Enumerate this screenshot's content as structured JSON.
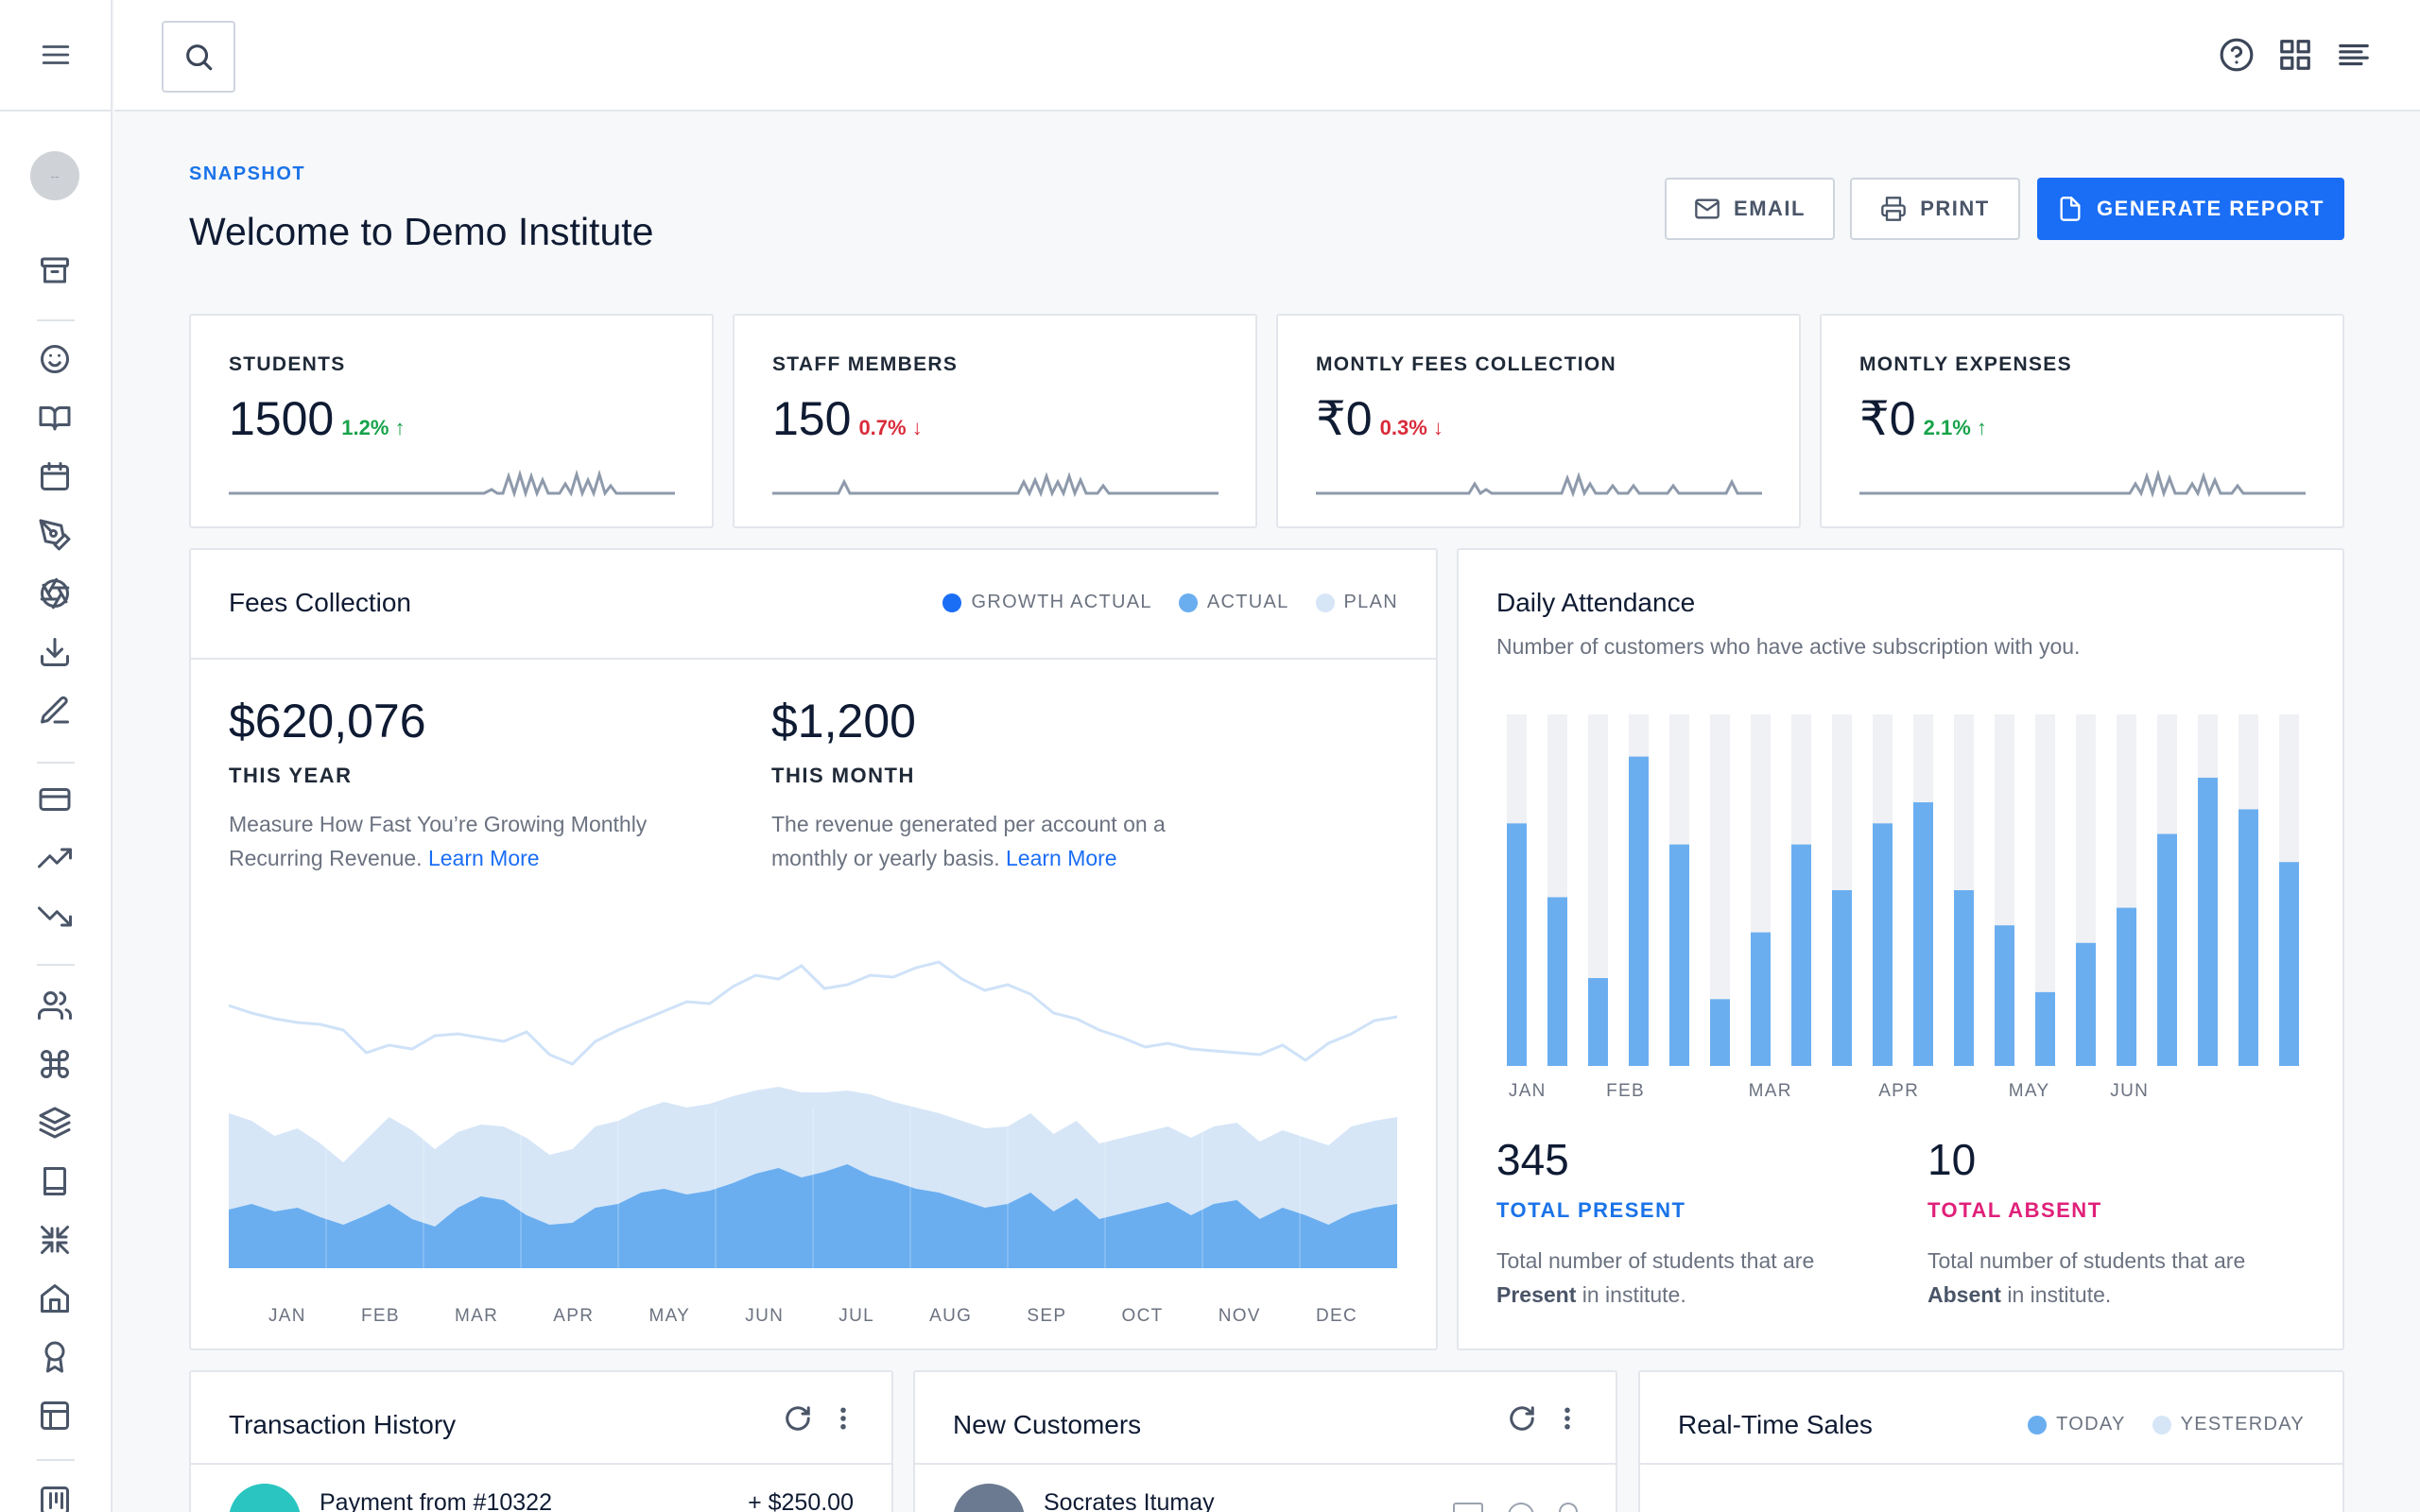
{
  "header": {
    "section": "SNAPSHOT",
    "title": "Welcome to Demo Institute"
  },
  "sidebar": {
    "avatar_text": "--"
  },
  "actions": {
    "email": "EMAIL",
    "print": "PRINT",
    "generate": "GENERATE REPORT"
  },
  "stats": [
    {
      "label": "STUDENTS",
      "value": "1500",
      "change": "1.2%",
      "direction": "up"
    },
    {
      "label": "STAFF MEMBERS",
      "value": "150",
      "change": "0.7%",
      "direction": "down"
    },
    {
      "label": "MONTLY FEES COLLECTION",
      "value": "₹0",
      "change": "0.3%",
      "direction": "down"
    },
    {
      "label": "MONTLY EXPENSES",
      "value": "₹0",
      "change": "2.1%",
      "direction": "up"
    }
  ],
  "fees": {
    "title": "Fees Collection",
    "legend": [
      "GROWTH ACTUAL",
      "ACTUAL",
      "PLAN"
    ],
    "year_value": "$620,076",
    "year_label": "THIS YEAR",
    "year_desc": "Measure How Fast You’re Growing Monthly Recurring Revenue.",
    "month_value": "$1,200",
    "month_label": "THIS MONTH",
    "month_desc": "The revenue generated per account on a monthly or yearly basis.",
    "learn_more": "Learn More",
    "months": [
      "JAN",
      "FEB",
      "MAR",
      "APR",
      "MAY",
      "JUN",
      "JUL",
      "AUG",
      "SEP",
      "OCT",
      "NOV",
      "DEC"
    ]
  },
  "attendance": {
    "title": "Daily Attendance",
    "subtitle": "Number of customers who have active subscription with you.",
    "months": [
      "JAN",
      "FEB",
      "MAR",
      "APR",
      "MAY",
      "JUN"
    ],
    "present_value": "345",
    "present_label": "TOTAL PRESENT",
    "present_desc_pre": "Total number of students that are",
    "present_word": "Present",
    "present_desc_post": " in institute.",
    "absent_value": "10",
    "absent_label": "TOTAL ABSENT",
    "absent_desc_pre": "Total number of students that are",
    "absent_word": "Absent",
    "absent_desc_post": " in institute."
  },
  "transactions": {
    "title": "Transaction History",
    "first_item": "Payment from #10322",
    "first_amount": "+ $250.00"
  },
  "customers": {
    "title": "New Customers",
    "first_name": "Socrates Itumay"
  },
  "sales": {
    "title": "Real-Time Sales",
    "legend": [
      "TODAY",
      "YESTERDAY"
    ]
  },
  "colors": {
    "accent": "#1a6ef5",
    "bar": "#6aaef0",
    "bar_bg": "#eff1f4",
    "present": "#1a73e8",
    "absent": "#e0207a",
    "growth": "#1a6ef5",
    "actual": "#6aaef0",
    "plan": "#d6e6f7"
  },
  "chart_data": [
    {
      "type": "bar",
      "title": "Daily Attendance",
      "categories": [
        "1",
        "2",
        "3",
        "4",
        "5",
        "6",
        "7",
        "8",
        "9",
        "10",
        "11",
        "12",
        "13",
        "14",
        "15",
        "16",
        "17",
        "18",
        "19",
        "20"
      ],
      "x_tick_labels": [
        "JAN",
        "FEB",
        "MAR",
        "APR",
        "MAY",
        "JUN"
      ],
      "values": [
        69,
        48,
        25,
        88,
        63,
        19,
        38,
        63,
        50,
        69,
        75,
        50,
        40,
        21,
        35,
        45,
        66,
        82,
        73,
        58
      ],
      "max": [
        100,
        100,
        100,
        100,
        100,
        100,
        100,
        100,
        100,
        100,
        100,
        100,
        100,
        100,
        100,
        100,
        100,
        100,
        100,
        100
      ],
      "ylim": [
        0,
        100
      ]
    },
    {
      "type": "area",
      "title": "Fees Collection",
      "x_tick_labels": [
        "JAN",
        "FEB",
        "MAR",
        "APR",
        "MAY",
        "JUN",
        "JUL",
        "AUG",
        "SEP",
        "OCT",
        "NOV",
        "DEC"
      ],
      "series": [
        {
          "name": "GROWTH ACTUAL",
          "values": [
            65,
            72,
            62,
            66,
            55,
            48,
            58,
            70,
            54,
            45,
            66,
            78,
            74,
            58,
            48,
            50,
            66,
            70,
            82,
            86,
            80,
            84,
            92,
            102,
            108,
            98,
            104,
            112,
            100,
            94,
            86,
            82,
            74,
            66,
            70,
            82,
            62,
            76,
            54,
            60,
            66,
            72,
            58,
            70,
            74,
            54,
            66,
            58,
            48,
            60,
            66,
            70
          ]
        },
        {
          "name": "ACTUAL",
          "values": [
            62,
            68,
            60,
            64,
            54,
            46,
            56,
            68,
            52,
            44,
            64,
            76,
            72,
            56,
            46,
            48,
            64,
            68,
            80,
            84,
            78,
            82,
            90,
            100,
            106,
            96,
            102,
            110,
            98,
            92,
            84,
            80,
            72,
            64,
            68,
            80,
            60,
            74,
            52,
            58,
            64,
            70,
            56,
            68,
            72,
            52,
            64,
            56,
            46,
            58,
            64,
            68
          ]
        },
        {
          "name": "PLAN",
          "values": [
            164,
            156,
            140,
            148,
            132,
            112,
            136,
            160,
            146,
            126,
            144,
            152,
            150,
            138,
            120,
            126,
            150,
            156,
            168,
            176,
            170,
            174,
            182,
            188,
            192,
            186,
            186,
            188,
            184,
            176,
            170,
            164,
            156,
            148,
            150,
            164,
            142,
            156,
            132,
            138,
            144,
            150,
            138,
            150,
            154,
            134,
            146,
            138,
            130,
            150,
            156,
            160
          ]
        },
        {
          "name": "TREND",
          "values": [
            278,
            270,
            264,
            260,
            258,
            252,
            228,
            236,
            232,
            246,
            248,
            244,
            240,
            250,
            226,
            216,
            240,
            252,
            262,
            272,
            282,
            280,
            298,
            310,
            306,
            320,
            296,
            300,
            310,
            308,
            318,
            324,
            306,
            294,
            300,
            290,
            270,
            264,
            252,
            244,
            234,
            238,
            232,
            230,
            228,
            226,
            236,
            220,
            238,
            248,
            262,
            266
          ]
        }
      ]
    }
  ]
}
